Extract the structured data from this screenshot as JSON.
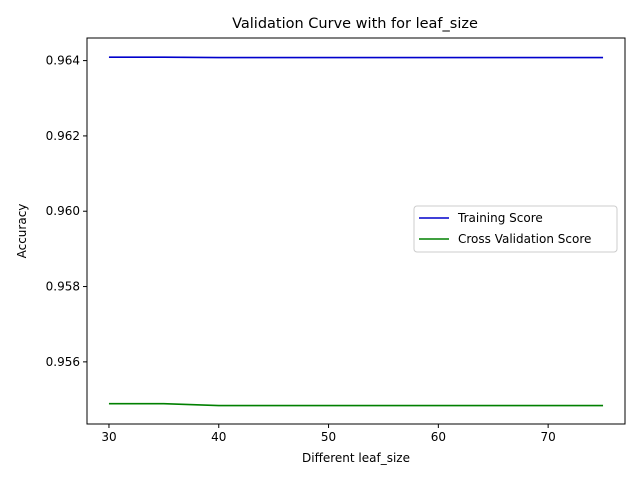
{
  "chart_data": {
    "type": "line",
    "title": "Validation Curve with for leaf_size",
    "xlabel": "Different leaf_size",
    "ylabel": "Accuracy",
    "x": [
      30,
      35,
      40,
      45,
      50,
      55,
      60,
      65,
      70,
      75
    ],
    "xlim": [
      28,
      77
    ],
    "ylim": [
      0.95435,
      0.9646
    ],
    "xticks": [
      30,
      40,
      50,
      60,
      70
    ],
    "yticks": [
      0.956,
      0.958,
      0.96,
      0.962,
      0.964
    ],
    "ytick_labels": [
      "0.956",
      "0.958",
      "0.960",
      "0.962",
      "0.964"
    ],
    "grid": false,
    "legend_position": "center-right",
    "series": [
      {
        "name": "Training Score",
        "color": "#0000cc",
        "values": [
          0.96409,
          0.96409,
          0.96408,
          0.96408,
          0.96408,
          0.96408,
          0.96408,
          0.96408,
          0.96408,
          0.96408
        ]
      },
      {
        "name": "Cross Validation Score",
        "color": "#008000",
        "values": [
          0.95489,
          0.95489,
          0.95484,
          0.95484,
          0.95484,
          0.95484,
          0.95484,
          0.95484,
          0.95484,
          0.95484
        ]
      }
    ]
  }
}
